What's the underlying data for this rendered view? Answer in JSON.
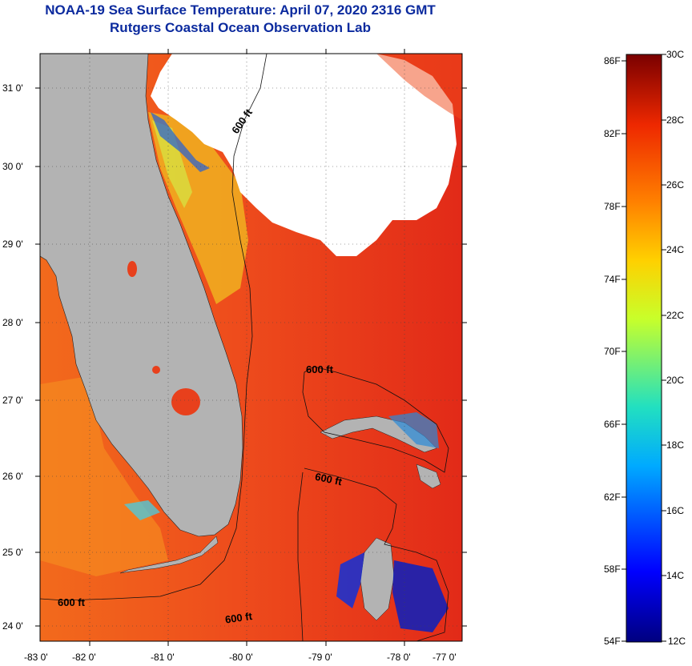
{
  "header": {
    "title": "NOAA-19 Sea Surface Temperature:  April 07, 2020 2316 GMT",
    "subtitle": "Rutgers Coastal Ocean Observation Lab"
  },
  "map": {
    "latitude_labels": [
      "31 0'",
      "30 0'",
      "29 0'",
      "28 0'",
      "27 0'",
      "26 0'",
      "25 0'",
      "24 0'"
    ],
    "longitude_labels": [
      "-83 0'",
      "-82 0'",
      "-81 0'",
      "-80 0'",
      "-79 0'",
      "-78 0'",
      "-77 0'"
    ],
    "contour_labels": [
      "600 ft",
      "600 ft",
      "600 ft",
      "600 ft",
      "600 ft"
    ],
    "colors": {
      "land": "#b3b3b3",
      "cloud": "#ffffff",
      "warm_sea": "#e8341a",
      "gulf_sea": "#f26a1c"
    }
  },
  "colorbar": {
    "fahrenheit_labels": [
      "86F",
      "82F",
      "78F",
      "74F",
      "70F",
      "66F",
      "62F",
      "58F",
      "54F"
    ],
    "celsius_labels": [
      "30C",
      "28C",
      "26C",
      "24C",
      "22C",
      "20C",
      "18C",
      "16C",
      "14C",
      "12C"
    ]
  }
}
